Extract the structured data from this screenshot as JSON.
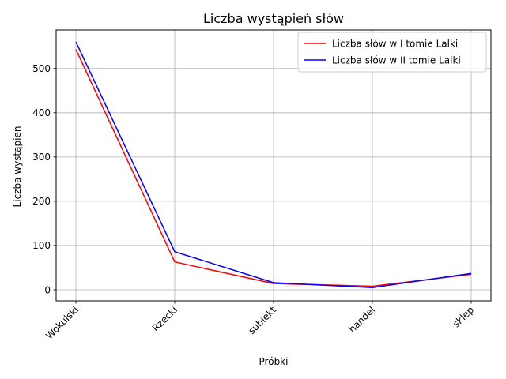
{
  "chart_data": {
    "type": "line",
    "title": "Liczba wystąpień słów",
    "xlabel": "Próbki",
    "ylabel": "Liczba wystąpień",
    "categories": [
      "Wokulski",
      "Rzecki",
      "subiekt",
      "handel",
      "sklep"
    ],
    "series": [
      {
        "name": "Liczba słów w I tomie Lalki",
        "color": "#ff0000",
        "values": [
          543,
          63,
          14,
          8,
          35
        ]
      },
      {
        "name": "Liczba słów w II tomie Lalki",
        "color": "#0000ff",
        "values": [
          560,
          86,
          16,
          5,
          37
        ]
      }
    ],
    "ylim": [
      -25,
      587
    ],
    "yticks": [
      0,
      100,
      200,
      300,
      400,
      500
    ],
    "grid": true,
    "legend_position": "top-right"
  }
}
